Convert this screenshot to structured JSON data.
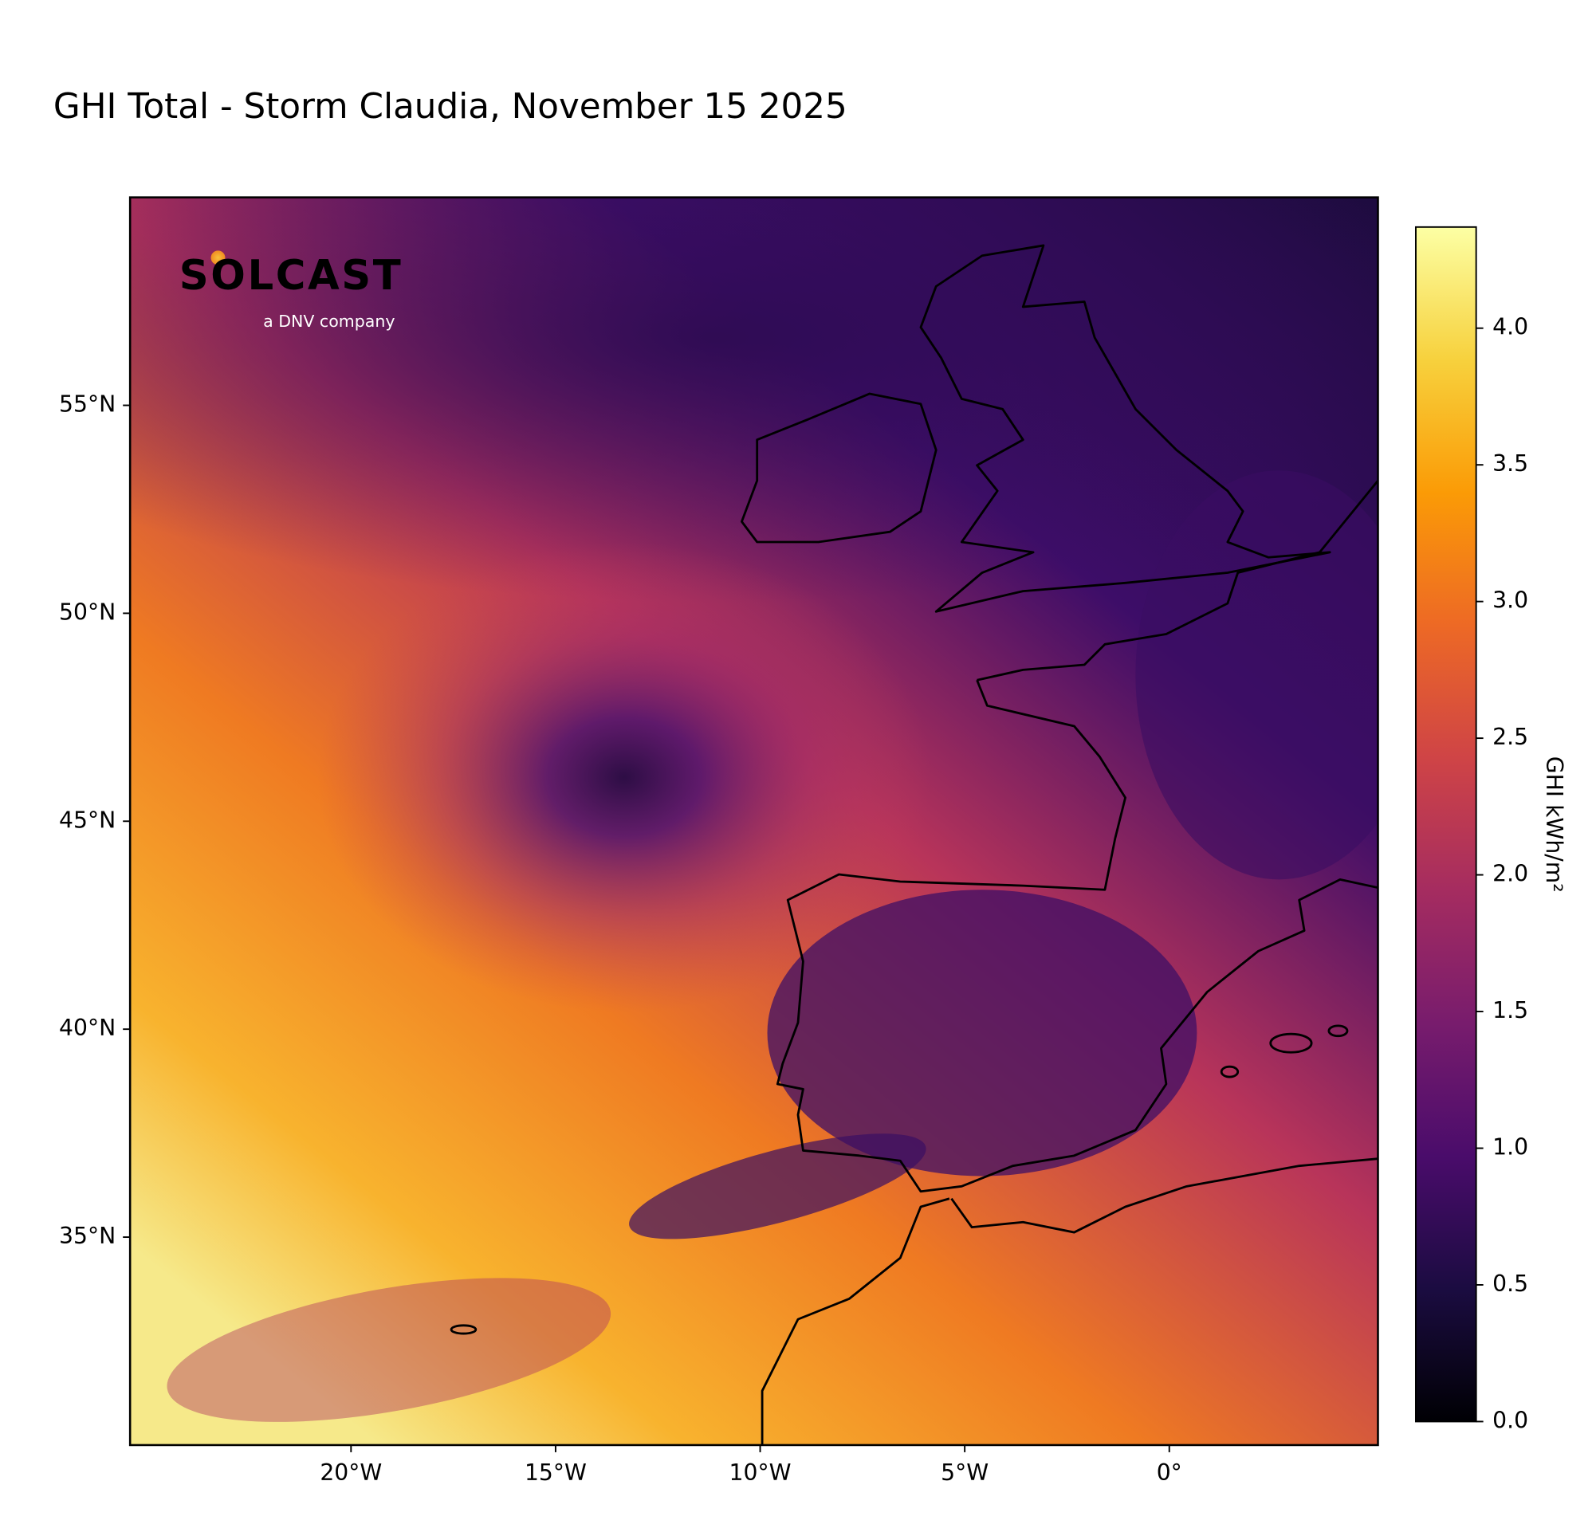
{
  "chart_data": {
    "type": "map",
    "title": "GHI Total - Storm Claudia, November 15 2025",
    "logo": {
      "name": "SOLCAST",
      "tagline": "a DNV company"
    },
    "xlim": [
      -25.4,
      5.1
    ],
    "ylim": [
      30,
      60
    ],
    "xticks": [
      {
        "value": -20,
        "label": "20°W"
      },
      {
        "value": -15,
        "label": "15°W"
      },
      {
        "value": -10,
        "label": "10°W"
      },
      {
        "value": -5,
        "label": "5°W"
      },
      {
        "value": 0,
        "label": "0°"
      }
    ],
    "yticks": [
      {
        "value": 35,
        "label": "35°N"
      },
      {
        "value": 40,
        "label": "40°N"
      },
      {
        "value": 45,
        "label": "45°N"
      },
      {
        "value": 50,
        "label": "50°N"
      },
      {
        "value": 55,
        "label": "55°N"
      }
    ],
    "colorbar": {
      "label": "GHI kWh/m²",
      "colormap": "inferno",
      "lim": [
        0,
        4.37
      ],
      "ticks": [
        {
          "value": 0,
          "label": "0.0"
        },
        {
          "value": 0.5,
          "label": "0.5"
        },
        {
          "value": 1,
          "label": "1.0"
        },
        {
          "value": 1.5,
          "label": "1.5"
        },
        {
          "value": 2,
          "label": "2.0"
        },
        {
          "value": 2.5,
          "label": "2.5"
        },
        {
          "value": 3,
          "label": "3.0"
        },
        {
          "value": 3.5,
          "label": "3.5"
        },
        {
          "value": 4,
          "label": "4.0"
        }
      ]
    }
  }
}
